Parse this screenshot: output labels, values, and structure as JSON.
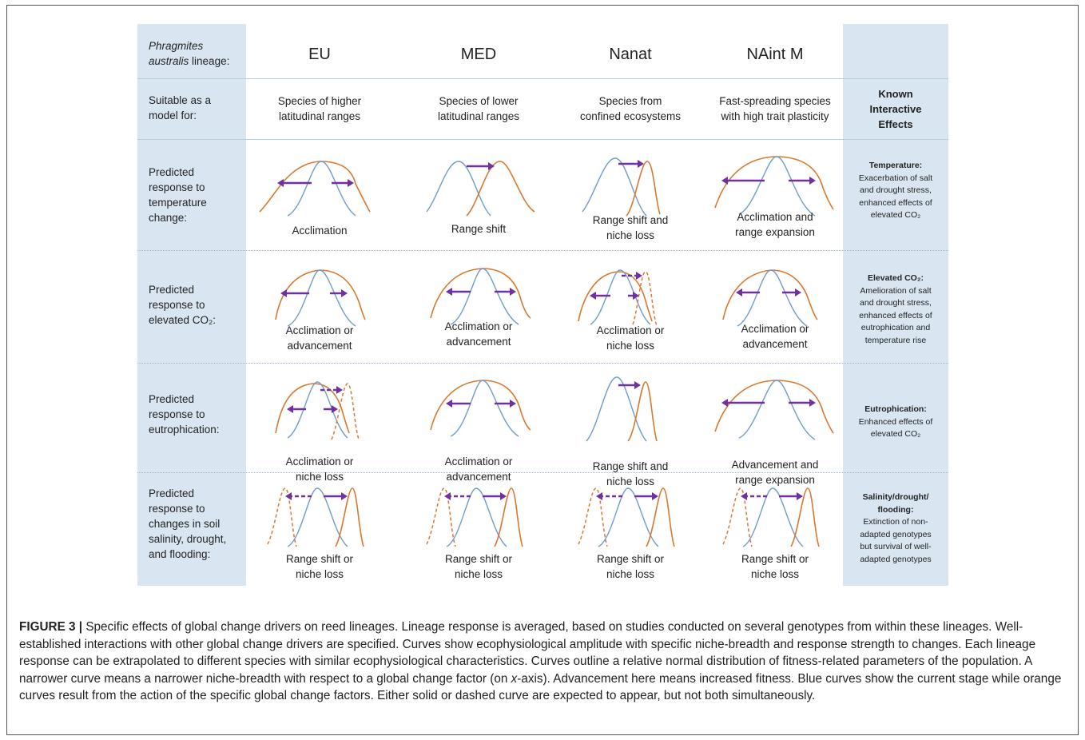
{
  "header": {
    "lineage_label_1": "Phragmites",
    "lineage_label_2": "australis",
    "lineage_label_3": "lineage:",
    "columns": [
      "EU",
      "MED",
      "Nanat",
      "NAint M"
    ]
  },
  "model_row": {
    "label_1": "Suitable as a",
    "label_2": "model for:",
    "cells": [
      [
        "Species of higher",
        "latitudinal ranges"
      ],
      [
        "Species of lower",
        "latitudinal ranges"
      ],
      [
        "Species from",
        "confined ecosystems"
      ],
      [
        "Fast-spreading species",
        "with high trait plasticity"
      ]
    ],
    "known_1": "Known",
    "known_2": "Interactive",
    "known_3": "Effects"
  },
  "rows": [
    {
      "label": [
        "Predicted",
        "response to",
        "temperature",
        "change:"
      ],
      "captions": [
        [
          "Acclimation"
        ],
        [
          "Range shift"
        ],
        [
          "Range shift and",
          "niche loss"
        ],
        [
          "Acclimation and",
          "range expansion"
        ]
      ],
      "effect_title": "Temperature:",
      "effect_lines": [
        "Exacerbation of salt",
        "and drought stress,",
        "enhanced effects of",
        "elevated CO₂"
      ]
    },
    {
      "label": [
        "Predicted",
        "response to",
        "elevated CO₂:"
      ],
      "captions": [
        [
          "Acclimation or",
          "advancement"
        ],
        [
          "Acclimation or",
          "advancement"
        ],
        [
          "Acclimation or",
          "niche loss"
        ],
        [
          "Acclimation or",
          "advancement"
        ]
      ],
      "effect_title": "Elevated CO₂:",
      "effect_lines": [
        "Amelioration of salt",
        "and drought stress,",
        "enhanced effects of",
        "eutrophication and",
        "temperature  rise"
      ]
    },
    {
      "label": [
        "Predicted",
        "response to",
        "eutrophication:"
      ],
      "captions": [
        [
          "Acclimation or",
          "niche loss"
        ],
        [
          "Acclimation or",
          "advancement"
        ],
        [
          "Range shift and",
          "niche loss"
        ],
        [
          "Advancement  and",
          "range expansion"
        ]
      ],
      "effect_title": "Eutrophication:",
      "effect_lines": [
        "Enhanced effects of",
        "elevated CO₂"
      ]
    },
    {
      "label": [
        "Predicted",
        "response to",
        "changes in soil",
        "salinity, drought,",
        "and flooding:"
      ],
      "captions": [
        [
          "Range shift or",
          "niche loss"
        ],
        [
          "Range shift or",
          "niche loss"
        ],
        [
          "Range shift or",
          "niche loss"
        ],
        [
          "Range shift or",
          "niche loss"
        ]
      ],
      "effect_title": "Salinity/drought/",
      "effect_title_2": "flooding:",
      "effect_lines": [
        "Extinction of non-",
        "adapted genotypes",
        "but survival of well-",
        "adapted genotypes"
      ]
    }
  ],
  "caption": {
    "figure_label": "FIGURE 3 |",
    "text_1": " Specific effects of global change drivers on reed lineages. Lineage response is averaged, based on studies conducted on several genotypes from within these lineages. Well-established interactions with other global change drivers are specified. Curves show ecophysiological amplitude with specific niche-breadth and response strength to changes. Each lineage response can be extrapolated to different species with similar ecophysiological characteristics. Curves outline a relative normal distribution of fitness-related parameters of the population. A narrower curve means a narrower niche-breadth with respect to a global change factor (on ",
    "axis": "x",
    "text_2": "-axis). Advancement here means increased fitness. Blue curves show the current stage while orange curves result from the action of the specific global change factors. Either solid or dashed curve are expected to appear, but not both simultaneously."
  },
  "colors": {
    "blue": "#6f9ccc",
    "orange": "#d9782e",
    "purple": "#7030a0",
    "panel": "#d9e6f2"
  }
}
